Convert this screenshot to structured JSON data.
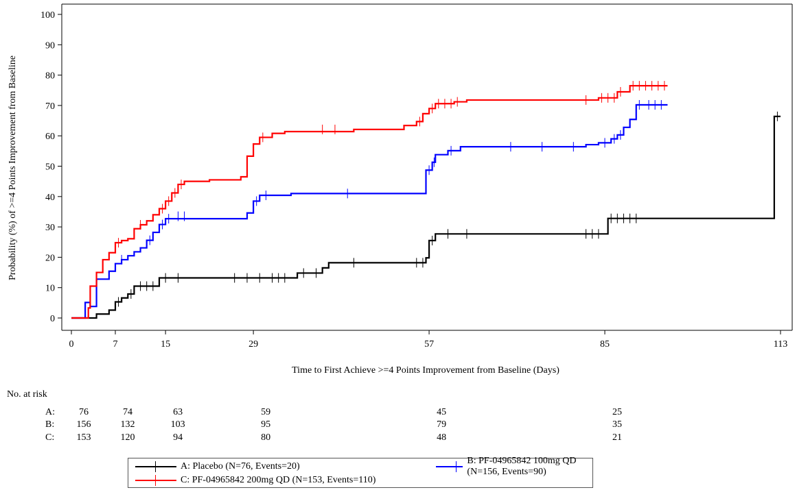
{
  "chart_data": {
    "type": "line",
    "step": true,
    "xlabel": "Time to First Achieve >=4 Points Improvement from Baseline (Days)",
    "ylabel": "Probability (%) of >=4 Points Improvement from Baseline",
    "xlim": [
      0,
      113
    ],
    "ylim": [
      0,
      100
    ],
    "xticks": [
      0,
      7,
      15,
      29,
      57,
      85,
      113
    ],
    "yticks": [
      0,
      10,
      20,
      30,
      40,
      50,
      60,
      70,
      80,
      90,
      100
    ],
    "grid": false,
    "series": [
      {
        "key": "A",
        "name": "A: Placebo (N=76, Events=20)",
        "color": "#000000",
        "steps": [
          [
            0,
            0
          ],
          [
            2.5,
            0
          ],
          [
            4,
            1.3
          ],
          [
            6,
            2.6
          ],
          [
            7,
            5.3
          ],
          [
            8,
            6.6
          ],
          [
            9,
            7.9
          ],
          [
            10,
            10.5
          ],
          [
            14,
            13.2
          ],
          [
            36,
            14.8
          ],
          [
            40,
            16.5
          ],
          [
            41,
            18.2
          ],
          [
            56.5,
            19.8
          ],
          [
            57,
            25.5
          ],
          [
            58,
            27.7
          ],
          [
            85.5,
            32.8
          ],
          [
            111.8,
            32.8
          ],
          [
            112,
            66.4
          ],
          [
            113,
            66.4
          ]
        ],
        "censored": [
          [
            7.5,
            5.3
          ],
          [
            9.5,
            7.9
          ],
          [
            11,
            10.5
          ],
          [
            12,
            10.5
          ],
          [
            13,
            10.5
          ],
          [
            15,
            13.2
          ],
          [
            17,
            13.2
          ],
          [
            26,
            13.2
          ],
          [
            28,
            13.2
          ],
          [
            30,
            13.2
          ],
          [
            32,
            13.2
          ],
          [
            33,
            13.2
          ],
          [
            34,
            13.2
          ],
          [
            37,
            14.8
          ],
          [
            39,
            14.8
          ],
          [
            45,
            18.2
          ],
          [
            55,
            18.2
          ],
          [
            56,
            18.2
          ],
          [
            57.5,
            25.5
          ],
          [
            60,
            27.7
          ],
          [
            63,
            27.7
          ],
          [
            82,
            27.7
          ],
          [
            83,
            27.7
          ],
          [
            84,
            27.7
          ],
          [
            86,
            32.8
          ],
          [
            87,
            32.8
          ],
          [
            88,
            32.8
          ],
          [
            89,
            32.8
          ],
          [
            90,
            32.8
          ],
          [
            112.5,
            66.4
          ]
        ]
      },
      {
        "key": "B",
        "name": "B: PF-04965842 100mg QD (N=156, Events=90)",
        "color": "#0000ff",
        "steps": [
          [
            0,
            0
          ],
          [
            2,
            0
          ],
          [
            2.2,
            5.1
          ],
          [
            3,
            3.8
          ],
          [
            4,
            12.8
          ],
          [
            6,
            15.4
          ],
          [
            7,
            17.9
          ],
          [
            8,
            19.2
          ],
          [
            9,
            20.5
          ],
          [
            10,
            21.8
          ],
          [
            11,
            23.1
          ],
          [
            12,
            25.6
          ],
          [
            13,
            28.2
          ],
          [
            14,
            30.8
          ],
          [
            15,
            32.7
          ],
          [
            28,
            34.6
          ],
          [
            29,
            38.5
          ],
          [
            30,
            40.4
          ],
          [
            35,
            41
          ],
          [
            56,
            41
          ],
          [
            56.5,
            48.7
          ],
          [
            57.5,
            51.3
          ],
          [
            58,
            53.8
          ],
          [
            60,
            55.1
          ],
          [
            62,
            56.4
          ],
          [
            82,
            57.1
          ],
          [
            84,
            57.7
          ],
          [
            86,
            59
          ],
          [
            87,
            60.3
          ],
          [
            88,
            62.8
          ],
          [
            89,
            65.4
          ],
          [
            90,
            70.2
          ],
          [
            95,
            70.2
          ]
        ],
        "censored": [
          [
            8,
            19.2
          ],
          [
            12.5,
            25.6
          ],
          [
            14.5,
            30.8
          ],
          [
            15.5,
            32.7
          ],
          [
            17,
            33.5
          ],
          [
            18,
            33.5
          ],
          [
            29.5,
            38.5
          ],
          [
            31,
            40.4
          ],
          [
            44,
            41
          ],
          [
            57,
            48.7
          ],
          [
            57.8,
            51.3
          ],
          [
            60.5,
            55.1
          ],
          [
            70,
            56.4
          ],
          [
            75,
            56.4
          ],
          [
            80,
            56.4
          ],
          [
            85,
            57.7
          ],
          [
            86.5,
            59
          ],
          [
            87.5,
            60.3
          ],
          [
            90.5,
            70.2
          ],
          [
            92,
            70.2
          ],
          [
            93,
            70.2
          ],
          [
            94,
            70.2
          ]
        ]
      },
      {
        "key": "C",
        "name": "C: PF-04965842 200mg QD (N=153, Events=110)",
        "color": "#ff0000",
        "steps": [
          [
            0,
            0
          ],
          [
            2,
            0
          ],
          [
            2.7,
            3.3
          ],
          [
            3,
            10.5
          ],
          [
            4,
            15
          ],
          [
            5,
            19.2
          ],
          [
            6,
            21.5
          ],
          [
            7,
            24.8
          ],
          [
            8,
            25.5
          ],
          [
            9,
            26.1
          ],
          [
            10,
            29.4
          ],
          [
            11,
            30.7
          ],
          [
            12,
            32
          ],
          [
            13,
            34
          ],
          [
            14,
            36
          ],
          [
            15,
            38.5
          ],
          [
            16,
            41.2
          ],
          [
            17,
            44
          ],
          [
            18,
            45
          ],
          [
            22,
            45.5
          ],
          [
            27,
            46.5
          ],
          [
            28,
            53.3
          ],
          [
            29,
            57.3
          ],
          [
            30,
            59.5
          ],
          [
            32,
            60.8
          ],
          [
            34,
            61.4
          ],
          [
            45,
            62.1
          ],
          [
            53,
            63.4
          ],
          [
            55,
            64.7
          ],
          [
            56,
            67.3
          ],
          [
            57,
            69
          ],
          [
            58,
            70.6
          ],
          [
            61,
            71.2
          ],
          [
            63,
            71.8
          ],
          [
            84,
            72.5
          ],
          [
            87,
            74.5
          ],
          [
            89,
            76.5
          ],
          [
            95,
            76.5
          ]
        ],
        "censored": [
          [
            7.5,
            24.8
          ],
          [
            11,
            30.7
          ],
          [
            14.5,
            36
          ],
          [
            15.5,
            38.5
          ],
          [
            16.5,
            41.2
          ],
          [
            17.5,
            44
          ],
          [
            30.5,
            59.5
          ],
          [
            40,
            62.1
          ],
          [
            42,
            62.1
          ],
          [
            55.5,
            64.7
          ],
          [
            57.5,
            69
          ],
          [
            58.5,
            70.6
          ],
          [
            59.5,
            70.6
          ],
          [
            60.5,
            70.6
          ],
          [
            61.5,
            71.2
          ],
          [
            82,
            71.8
          ],
          [
            84.5,
            72.5
          ],
          [
            85.5,
            72.5
          ],
          [
            86.5,
            72.5
          ],
          [
            87.5,
            74.5
          ],
          [
            89.5,
            76.5
          ],
          [
            90.5,
            76.5
          ],
          [
            91.5,
            76.5
          ],
          [
            92.5,
            76.5
          ],
          [
            93.5,
            76.5
          ],
          [
            94.5,
            76.5
          ]
        ]
      }
    ],
    "risk_table": {
      "title": "No. at risk",
      "timepoints": [
        0,
        7,
        15,
        29,
        57,
        85
      ],
      "rows": [
        {
          "label": "A:",
          "values": [
            "76",
            "74",
            "63",
            "59",
            "45",
            "25"
          ]
        },
        {
          "label": "B:",
          "values": [
            "156",
            "132",
            "103",
            "95",
            "79",
            "35"
          ]
        },
        {
          "label": "C:",
          "values": [
            "153",
            "120",
            "94",
            "80",
            "48",
            "21"
          ]
        }
      ]
    },
    "legend_position": "bottom"
  }
}
